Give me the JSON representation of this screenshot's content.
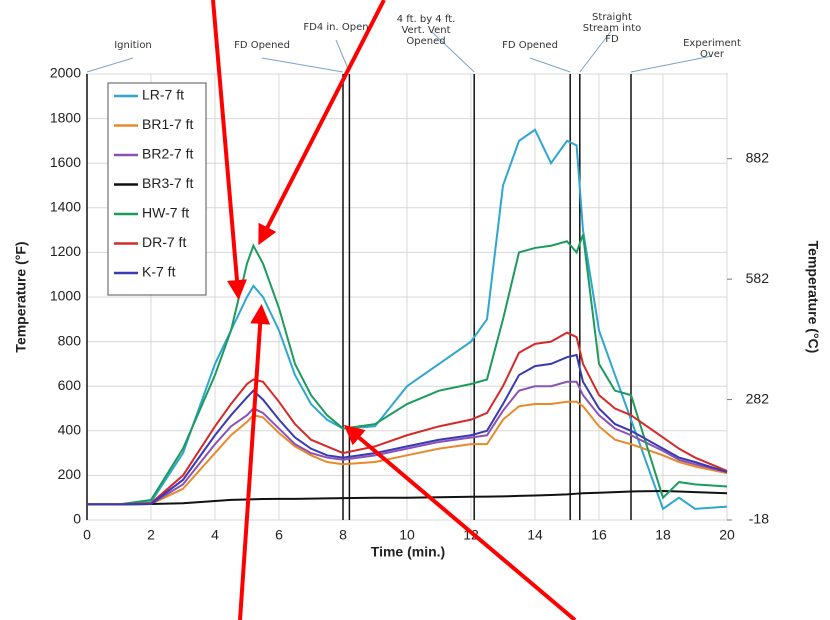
{
  "chart_data": {
    "type": "line",
    "x_label": "Time (min.)",
    "y_label": "Temperature (°F)",
    "y2_label": "Temperature (°C)",
    "x": [
      0,
      1,
      2,
      3,
      4,
      4.5,
      5,
      5.2,
      5.5,
      6,
      6.5,
      7,
      7.5,
      8,
      9,
      10,
      11,
      12,
      12.5,
      13,
      13.5,
      14,
      14.5,
      15,
      15.3,
      15.5,
      16,
      16.5,
      17,
      18,
      18.5,
      19,
      20
    ],
    "series": [
      {
        "name": "LR-7 ft",
        "color": "#2fa6cf",
        "values": [
          70,
          70,
          80,
          300,
          700,
          850,
          1000,
          1050,
          1000,
          850,
          650,
          520,
          450,
          410,
          420,
          600,
          700,
          800,
          900,
          1500,
          1700,
          1750,
          1600,
          1700,
          1680,
          1300,
          850,
          650,
          450,
          50,
          100,
          50,
          60
        ]
      },
      {
        "name": "BR1-7 ft",
        "color": "#e88a2c",
        "values": [
          70,
          70,
          72,
          140,
          300,
          380,
          440,
          470,
          460,
          390,
          330,
          290,
          260,
          250,
          260,
          290,
          320,
          340,
          340,
          450,
          510,
          520,
          520,
          530,
          530,
          510,
          420,
          360,
          340,
          290,
          260,
          240,
          210
        ]
      },
      {
        "name": "BR2-7 ft",
        "color": "#8a52b6",
        "values": [
          70,
          70,
          72,
          160,
          340,
          420,
          470,
          500,
          480,
          410,
          340,
          300,
          280,
          270,
          290,
          320,
          350,
          370,
          380,
          490,
          580,
          600,
          600,
          620,
          620,
          560,
          470,
          410,
          380,
          310,
          270,
          250,
          215
        ]
      },
      {
        "name": "BR3-7 ft",
        "color": "#111111",
        "values": [
          70,
          70,
          72,
          75,
          85,
          90,
          92,
          93,
          94,
          95,
          95,
          96,
          97,
          98,
          100,
          100,
          102,
          104,
          105,
          106,
          108,
          110,
          112,
          115,
          118,
          120,
          122,
          125,
          128,
          130,
          128,
          125,
          120
        ]
      },
      {
        "name": "HW-7 ft",
        "color": "#1d9a5e",
        "values": [
          70,
          70,
          90,
          320,
          650,
          850,
          1150,
          1230,
          1150,
          950,
          700,
          560,
          470,
          410,
          430,
          520,
          580,
          610,
          630,
          900,
          1200,
          1220,
          1230,
          1250,
          1200,
          1280,
          700,
          580,
          560,
          100,
          170,
          160,
          150
        ]
      },
      {
        "name": "DR-7 ft",
        "color": "#d42a2a",
        "values": [
          70,
          70,
          75,
          200,
          420,
          520,
          610,
          630,
          620,
          530,
          430,
          360,
          330,
          300,
          330,
          380,
          420,
          450,
          480,
          600,
          750,
          790,
          800,
          840,
          820,
          700,
          560,
          500,
          470,
          370,
          320,
          280,
          220
        ]
      },
      {
        "name": "K-7 ft",
        "color": "#3a3ab2",
        "values": [
          70,
          70,
          72,
          180,
          380,
          470,
          550,
          580,
          540,
          450,
          370,
          320,
          290,
          280,
          300,
          330,
          360,
          380,
          400,
          520,
          650,
          690,
          700,
          730,
          740,
          620,
          500,
          430,
          400,
          320,
          280,
          260,
          215
        ]
      }
    ],
    "xlim": [
      0,
      20
    ],
    "xticks": [
      0,
      2,
      4,
      6,
      8,
      10,
      12,
      14,
      16,
      18,
      20
    ],
    "ylim": [
      0,
      2000
    ],
    "yticks": [
      0,
      200,
      400,
      600,
      800,
      1000,
      1200,
      1400,
      1600,
      1800,
      2000
    ],
    "y2lim": [
      -18,
      1093
    ],
    "y2ticks": [
      -18,
      282,
      582,
      882
    ],
    "grid": true,
    "annotations": [
      {
        "text": "Ignition",
        "x": 0
      },
      {
        "text": "FD Opened",
        "x": 8
      },
      {
        "text": "FD4 in. Open",
        "x": 8.2
      },
      {
        "text": "4 ft. by 4 ft. Vert. Vent Opened",
        "x": 12.1
      },
      {
        "text": "FD Opened",
        "x": 15.1
      },
      {
        "text": "Straight Stream into FD",
        "x": 15.4
      },
      {
        "text": "Experiment Over",
        "x": 17
      }
    ]
  }
}
